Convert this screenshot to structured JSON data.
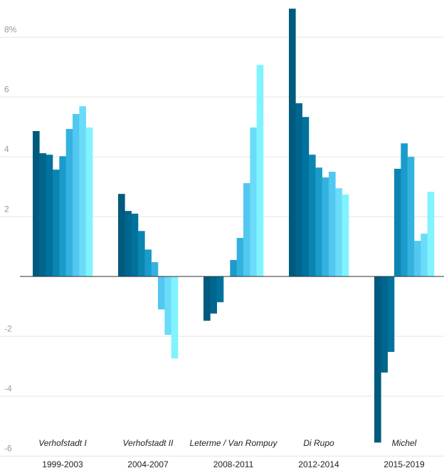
{
  "chart_data": {
    "type": "bar",
    "categories": [
      "1999-2003",
      "2004-2007",
      "2008-2011",
      "2012-2014",
      "2015-2019"
    ],
    "governments": [
      "Verhofstadt I",
      "Verhofstadt II",
      "Leterme / Van Rompuy",
      "Di Rupo",
      "Michel"
    ],
    "series": [
      {
        "color": "#005a7e",
        "values": [
          4.86,
          2.76,
          -1.48,
          8.95,
          -5.55
        ]
      },
      {
        "color": "#00668e",
        "values": [
          4.12,
          2.19,
          -1.24,
          5.79,
          -3.21
        ]
      },
      {
        "color": "#00729e",
        "values": [
          4.07,
          2.1,
          -0.86,
          5.33,
          -2.52
        ]
      },
      {
        "color": "#0a85b0",
        "values": [
          3.57,
          1.52,
          0,
          4.07,
          3.6
        ]
      },
      {
        "color": "#1a9bcb",
        "values": [
          4.02,
          0.9,
          0.55,
          3.64,
          4.45
        ]
      },
      {
        "color": "#33b2df",
        "values": [
          4.93,
          0.48,
          1.29,
          3.31,
          4.0
        ]
      },
      {
        "color": "#52c7f0",
        "values": [
          5.43,
          -1.1,
          3.12,
          3.5,
          1.19
        ]
      },
      {
        "color": "#6bdbfa",
        "values": [
          5.69,
          -1.95,
          4.98,
          2.95,
          1.43
        ]
      },
      {
        "color": "#80f3ff",
        "values": [
          4.98,
          -2.74,
          7.07,
          2.74,
          2.83
        ]
      }
    ],
    "ylim": [
      -6.4,
      9.24
    ],
    "yticks": [
      -6,
      -4,
      -2,
      2,
      4,
      6,
      {
        "value": 8,
        "label": "8%"
      }
    ],
    "grid": true
  }
}
